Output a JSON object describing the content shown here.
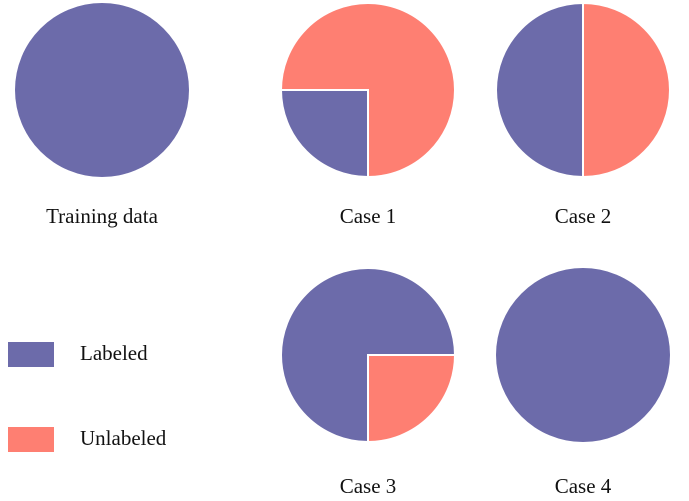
{
  "colors": {
    "labeled": "#6c6baa",
    "unlabeled": "#fe7f72"
  },
  "legend": {
    "labeled": "Labeled",
    "unlabeled": "Unlabeled"
  },
  "chart_data": [
    {
      "type": "pie",
      "title": "Training data",
      "slices": [
        {
          "label": "Labeled",
          "value": 100
        }
      ]
    },
    {
      "type": "pie",
      "title": "Case 1",
      "slices": [
        {
          "label": "Labeled",
          "value": 25
        },
        {
          "label": "Unlabeled",
          "value": 75
        }
      ]
    },
    {
      "type": "pie",
      "title": "Case 2",
      "slices": [
        {
          "label": "Labeled",
          "value": 50
        },
        {
          "label": "Unlabeled",
          "value": 50
        }
      ]
    },
    {
      "type": "pie",
      "title": "Case 3",
      "slices": [
        {
          "label": "Labeled",
          "value": 75
        },
        {
          "label": "Unlabeled",
          "value": 25
        }
      ]
    },
    {
      "type": "pie",
      "title": "Case 4",
      "slices": [
        {
          "label": "Labeled",
          "value": 100
        }
      ]
    }
  ]
}
